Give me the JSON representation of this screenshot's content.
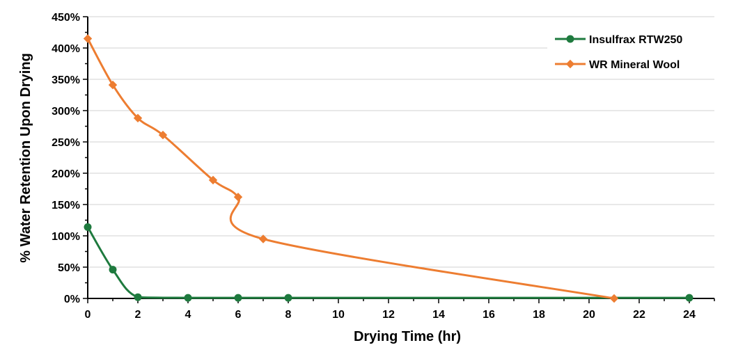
{
  "chart_data": {
    "type": "line",
    "title": "",
    "xlabel": "Drying Time (hr)",
    "ylabel": "% Water Retention Upon Drying",
    "xlim": [
      0,
      25
    ],
    "ylim": [
      0,
      450
    ],
    "xticks": [
      0,
      2,
      4,
      6,
      8,
      10,
      12,
      14,
      16,
      18,
      20,
      22,
      24
    ],
    "xtick_labels": [
      "0",
      "2",
      "4",
      "6",
      "8",
      "10",
      "12",
      "14",
      "16",
      "18",
      "20",
      "22",
      "24"
    ],
    "yticks": [
      0,
      50,
      100,
      150,
      200,
      250,
      300,
      350,
      400,
      450
    ],
    "ytick_labels": [
      "0%",
      "50%",
      "100%",
      "150%",
      "200%",
      "250%",
      "300%",
      "350%",
      "400%",
      "450%"
    ],
    "grid": "horizontal",
    "legend_position": "top-right",
    "series": [
      {
        "name": "Insulfrax RTW250",
        "color": "#1e7a3e",
        "marker": "circle",
        "x": [
          0,
          1,
          2,
          4,
          6,
          8,
          24
        ],
        "y": [
          114,
          46,
          2,
          1,
          1,
          1,
          1
        ]
      },
      {
        "name": "WR Mineral Wool",
        "color": "#ed7d31",
        "marker": "diamond",
        "x": [
          0,
          1,
          2,
          3,
          5,
          6,
          7,
          21
        ],
        "y": [
          415,
          341,
          288,
          261,
          189,
          162,
          95,
          0
        ]
      }
    ]
  }
}
